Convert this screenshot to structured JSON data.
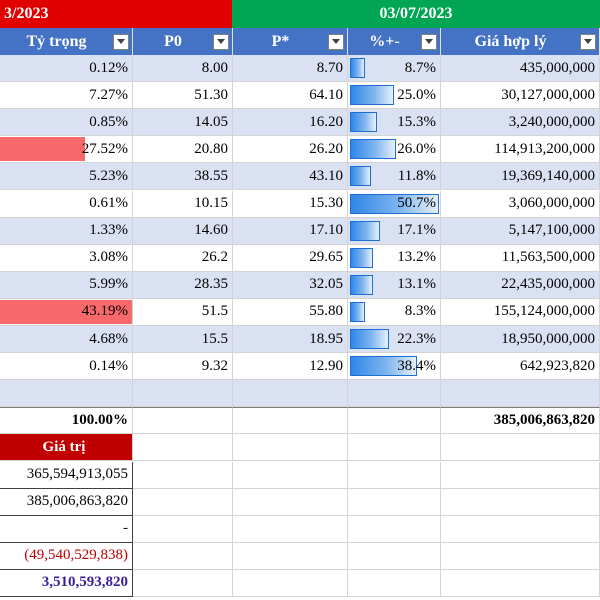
{
  "banners": {
    "left": "3/2023",
    "right": "03/07/2023"
  },
  "headers": {
    "weight": "Tỷ trọng",
    "p0": "P0",
    "pstar": "P*",
    "pct": "%+-",
    "fair_value": "Giá hợp lý"
  },
  "rows": [
    {
      "weight": "0.12%",
      "weight_val": 0.12,
      "p0": "8.00",
      "pstar": "8.70",
      "pct": "8.7%",
      "pct_val": 8.7,
      "fair_value": "435,000,000"
    },
    {
      "weight": "7.27%",
      "weight_val": 7.27,
      "p0": "51.30",
      "pstar": "64.10",
      "pct": "25.0%",
      "pct_val": 25.0,
      "fair_value": "30,127,000,000"
    },
    {
      "weight": "0.85%",
      "weight_val": 0.85,
      "p0": "14.05",
      "pstar": "16.20",
      "pct": "15.3%",
      "pct_val": 15.3,
      "fair_value": "3,240,000,000"
    },
    {
      "weight": "27.52%",
      "weight_val": 27.52,
      "p0": "20.80",
      "pstar": "26.20",
      "pct": "26.0%",
      "pct_val": 26.0,
      "fair_value": "114,913,200,000"
    },
    {
      "weight": "5.23%",
      "weight_val": 5.23,
      "p0": "38.55",
      "pstar": "43.10",
      "pct": "11.8%",
      "pct_val": 11.8,
      "fair_value": "19,369,140,000"
    },
    {
      "weight": "0.61%",
      "weight_val": 0.61,
      "p0": "10.15",
      "pstar": "15.30",
      "pct": "50.7%",
      "pct_val": 50.7,
      "fair_value": "3,060,000,000"
    },
    {
      "weight": "1.33%",
      "weight_val": 1.33,
      "p0": "14.60",
      "pstar": "17.10",
      "pct": "17.1%",
      "pct_val": 17.1,
      "fair_value": "5,147,100,000"
    },
    {
      "weight": "3.08%",
      "weight_val": 3.08,
      "p0": "26.2",
      "pstar": "29.65",
      "pct": "13.2%",
      "pct_val": 13.2,
      "fair_value": "11,563,500,000"
    },
    {
      "weight": "5.99%",
      "weight_val": 5.99,
      "p0": "28.35",
      "pstar": "32.05",
      "pct": "13.1%",
      "pct_val": 13.1,
      "fair_value": "22,435,000,000"
    },
    {
      "weight": "43.19%",
      "weight_val": 43.19,
      "p0": "51.5",
      "pstar": "55.80",
      "pct": "8.3%",
      "pct_val": 8.3,
      "fair_value": "155,124,000,000"
    },
    {
      "weight": "4.68%",
      "weight_val": 4.68,
      "p0": "15.5",
      "pstar": "18.95",
      "pct": "22.3%",
      "pct_val": 22.3,
      "fair_value": "18,950,000,000"
    },
    {
      "weight": "0.14%",
      "weight_val": 0.14,
      "p0": "9.32",
      "pstar": "12.90",
      "pct": "38.4%",
      "pct_val": 38.4,
      "fair_value": "642,923,820"
    }
  ],
  "totals": {
    "weight": "100.00%",
    "fair_value": "385,006,863,820"
  },
  "summary": {
    "header": "Giá trị",
    "values": [
      "365,594,913,055",
      "385,006,863,820",
      "-",
      "(49,540,529,838)",
      "3,510,593,820"
    ]
  },
  "colors": {
    "banner_left": "#e00000",
    "banner_right": "#00a651",
    "header": "#4472c4",
    "band": "#d9e1f2",
    "summary_header": "#c00000"
  }
}
